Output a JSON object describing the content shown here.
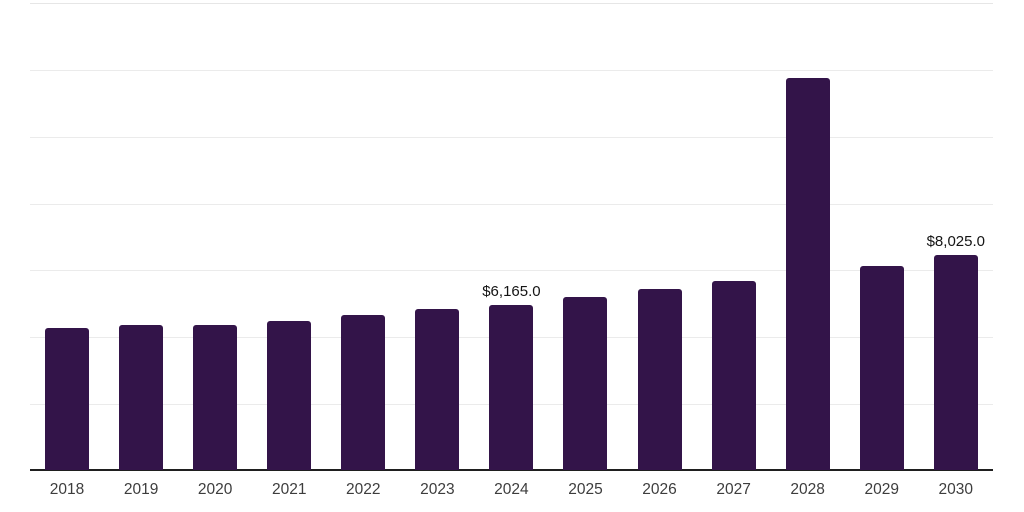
{
  "chart_data": {
    "type": "bar",
    "title": "",
    "xlabel": "",
    "ylabel": "",
    "categories": [
      "2018",
      "2019",
      "2020",
      "2021",
      "2022",
      "2023",
      "2024",
      "2025",
      "2026",
      "2027",
      "2028",
      "2029",
      "2030"
    ],
    "values": [
      5320,
      5415,
      5405,
      5590,
      5800,
      6025,
      6165,
      6475,
      6760,
      7060,
      14665,
      7630,
      8025
    ],
    "data_labels": [
      "",
      "",
      "",
      "",
      "",
      "",
      "$6,165.0",
      "",
      "",
      "",
      "",
      "",
      "$8,025.0"
    ],
    "ylim": [
      0,
      17500
    ],
    "gridline_step": 2500,
    "grid": true,
    "legend": false,
    "colors": {
      "bar": "#331449",
      "gridline": "#ebebeb",
      "top_gridline": "#e6e6e6",
      "axis_line": "#1f1f1f",
      "tick_text": "#3d3d3d",
      "label_text": "#141414",
      "background": "#ffffff"
    }
  }
}
